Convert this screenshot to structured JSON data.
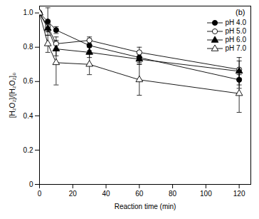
{
  "chart_data": {
    "type": "line",
    "annotations": [
      "(b)"
    ],
    "x_label": "Reaction time (min)",
    "y_label": "[H₂O₂]/[H₂O₂]₀",
    "x": [
      0,
      5,
      10,
      30,
      60,
      120
    ],
    "xlim": [
      0,
      127
    ],
    "xticks": [
      0,
      20,
      40,
      60,
      80,
      100,
      120
    ],
    "ylim": [
      0,
      1.04
    ],
    "yticks": [
      0,
      0.2,
      0.4,
      0.6,
      0.8,
      {
        "value": 1,
        "label": "1.0"
      }
    ],
    "legend": "top-right",
    "series": [
      {
        "name": "pH 4.0",
        "color": "#000000",
        "marker": "circle",
        "values": [
          1.0,
          0.95,
          0.9,
          0.81,
          0.74,
          0.61
        ],
        "errors": [
          0.0,
          0.08,
          0.02,
          0.03,
          0.03,
          0.05
        ]
      },
      {
        "name": "pH 5.0",
        "color": "#000000",
        "marker": "circle-open",
        "values": [
          1.0,
          0.92,
          0.82,
          0.84,
          0.77,
          0.67
        ],
        "errors": [
          0.0,
          0.03,
          0.04,
          0.02,
          0.03,
          0.05
        ]
      },
      {
        "name": "pH 6.0",
        "color": "#000000",
        "marker": "triangle",
        "values": [
          1.0,
          0.91,
          0.79,
          0.77,
          0.73,
          0.66
        ],
        "errors": [
          0.0,
          0.02,
          0.04,
          0.03,
          0.03,
          0.08
        ]
      },
      {
        "name": "pH 7.0",
        "color": "#000000",
        "marker": "triangle-open",
        "values": [
          1.0,
          0.82,
          0.71,
          0.7,
          0.61,
          0.53
        ],
        "errors": [
          0.0,
          0.05,
          0.13,
          0.06,
          0.09,
          0.11
        ]
      }
    ]
  }
}
